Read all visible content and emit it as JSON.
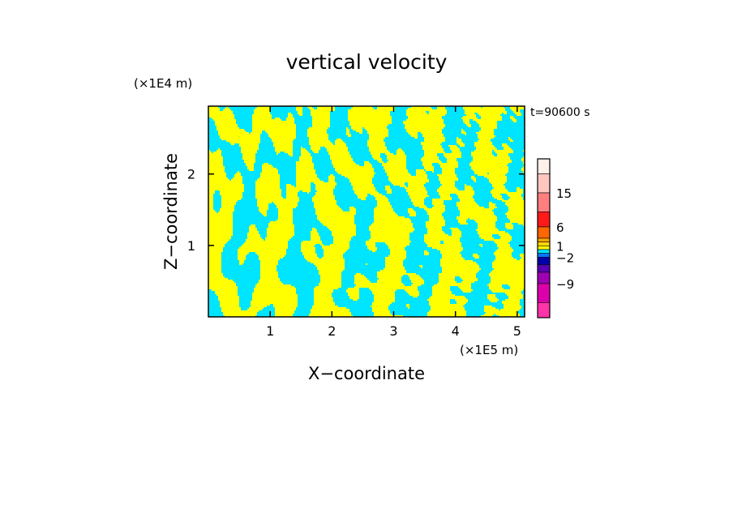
{
  "chart_data": {
    "type": "heatmap",
    "title": "vertical velocity",
    "xlabel": "X−coordinate",
    "ylabel": "Z−coordinate",
    "x_unit": "(×1E5 m)",
    "y_unit": "(×1E4 m)",
    "annotation": "t=90600 s",
    "xlim": [
      0,
      5.12
    ],
    "ylim": [
      0,
      2.95
    ],
    "x_ticks": [
      1,
      2,
      3,
      4,
      5
    ],
    "y_ticks": [
      1,
      2
    ],
    "x_tick_labels": [
      "1",
      "2",
      "3",
      "4",
      "5"
    ],
    "y_tick_labels": [
      "1",
      "2"
    ],
    "field_colors": {
      "positive": "#ffff00",
      "negative": "#00e5ff"
    },
    "colorbar": {
      "labels": [
        {
          "value": 15,
          "text": "15"
        },
        {
          "value": 6,
          "text": "6"
        },
        {
          "value": 1,
          "text": "1"
        },
        {
          "value": -2,
          "text": "−2"
        },
        {
          "value": -9,
          "text": "−9"
        }
      ],
      "bins": [
        {
          "lo": 20,
          "hi": 24,
          "color": "#fff0ea"
        },
        {
          "lo": 15,
          "hi": 20,
          "color": "#ffc6c0"
        },
        {
          "lo": 10,
          "hi": 15,
          "color": "#ff7f7f"
        },
        {
          "lo": 6,
          "hi": 10,
          "color": "#ff1a1a"
        },
        {
          "lo": 3,
          "hi": 6,
          "color": "#ff6600"
        },
        {
          "lo": 2,
          "hi": 3,
          "color": "#ffa500"
        },
        {
          "lo": 1,
          "hi": 2,
          "color": "#ffd700"
        },
        {
          "lo": 0,
          "hi": 1,
          "color": "#ffff00"
        },
        {
          "lo": -1,
          "hi": 0,
          "color": "#00e5ff"
        },
        {
          "lo": -2,
          "hi": -1,
          "color": "#0077ff"
        },
        {
          "lo": -4,
          "hi": -2,
          "color": "#0000aa"
        },
        {
          "lo": -6,
          "hi": -4,
          "color": "#5a00b4"
        },
        {
          "lo": -9,
          "hi": -6,
          "color": "#a000b4"
        },
        {
          "lo": -14,
          "hi": -9,
          "color": "#dd00aa"
        },
        {
          "lo": -18,
          "hi": -14,
          "color": "#ff33aa"
        }
      ]
    }
  }
}
